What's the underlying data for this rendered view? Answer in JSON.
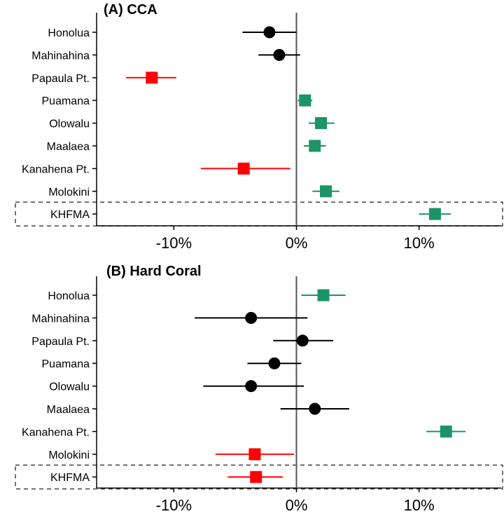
{
  "chart_data": [
    {
      "type": "scatter",
      "title": "(A) CCA",
      "categories": [
        "Honolua",
        "Mahinahina",
        "Papaula Pt.",
        "Puamana",
        "Olowalu",
        "Maalaea",
        "Kanahena Pt.",
        "Molokini",
        "KHFMA"
      ],
      "highlighted_category": "KHFMA",
      "x_tick_labels": [
        "-10%",
        "0%",
        "10%"
      ],
      "x_ticks": [
        -10,
        0,
        10
      ],
      "xlim": [
        -16.3,
        16.7
      ],
      "reference_line": 0,
      "colors": {
        "negative": "#ff0000",
        "neutral": "#000000",
        "positive": "#1b9466"
      },
      "points": [
        {
          "site": "Honolua",
          "value": -2.2,
          "low": -4.4,
          "high": 0.0,
          "marker": "circle",
          "status": "neutral"
        },
        {
          "site": "Mahinahina",
          "value": -1.4,
          "low": -3.1,
          "high": 0.3,
          "marker": "circle",
          "status": "neutral"
        },
        {
          "site": "Papaula Pt.",
          "value": -11.8,
          "low": -13.9,
          "high": -9.8,
          "marker": "square",
          "status": "negative"
        },
        {
          "site": "Puamana",
          "value": 0.7,
          "low": 0.1,
          "high": 1.3,
          "marker": "square",
          "status": "positive"
        },
        {
          "site": "Olowalu",
          "value": 2.0,
          "low": 1.0,
          "high": 3.1,
          "marker": "square",
          "status": "positive"
        },
        {
          "site": "Maalaea",
          "value": 1.5,
          "low": 0.6,
          "high": 2.4,
          "marker": "square",
          "status": "positive"
        },
        {
          "site": "Kanahena Pt.",
          "value": -4.3,
          "low": -7.8,
          "high": -0.5,
          "marker": "square",
          "status": "negative"
        },
        {
          "site": "Molokini",
          "value": 2.4,
          "low": 1.3,
          "high": 3.5,
          "marker": "square",
          "status": "positive"
        },
        {
          "site": "KHFMA",
          "value": 11.3,
          "low": 10.0,
          "high": 12.6,
          "marker": "square",
          "status": "positive"
        }
      ]
    },
    {
      "type": "scatter",
      "title": "(B) Hard Coral",
      "categories": [
        "Honolua",
        "Mahinahina",
        "Papaula Pt.",
        "Puamana",
        "Olowalu",
        "Maalaea",
        "Kanahena Pt.",
        "Molokini",
        "KHFMA"
      ],
      "highlighted_category": "KHFMA",
      "x_tick_labels": [
        "-10%",
        "0%",
        "10%"
      ],
      "x_ticks": [
        -10,
        0,
        10
      ],
      "xlim": [
        -16.3,
        16.7
      ],
      "reference_line": 0,
      "colors": {
        "negative": "#ff0000",
        "neutral": "#000000",
        "positive": "#1b9466"
      },
      "points": [
        {
          "site": "Honolua",
          "value": 2.2,
          "low": 0.4,
          "high": 4.0,
          "marker": "square",
          "status": "positive"
        },
        {
          "site": "Mahinahina",
          "value": -3.7,
          "low": -8.3,
          "high": 0.9,
          "marker": "circle",
          "status": "neutral"
        },
        {
          "site": "Papaula Pt.",
          "value": 0.5,
          "low": -1.9,
          "high": 3.0,
          "marker": "circle",
          "status": "neutral"
        },
        {
          "site": "Puamana",
          "value": -1.8,
          "low": -4.0,
          "high": 0.4,
          "marker": "circle",
          "status": "neutral"
        },
        {
          "site": "Olowalu",
          "value": -3.7,
          "low": -7.6,
          "high": 0.6,
          "marker": "circle",
          "status": "neutral"
        },
        {
          "site": "Maalaea",
          "value": 1.5,
          "low": -1.3,
          "high": 4.3,
          "marker": "circle",
          "status": "neutral"
        },
        {
          "site": "Kanahena Pt.",
          "value": 12.2,
          "low": 10.6,
          "high": 13.8,
          "marker": "square",
          "status": "positive"
        },
        {
          "site": "Molokini",
          "value": -3.4,
          "low": -6.6,
          "high": -0.2,
          "marker": "square",
          "status": "negative"
        },
        {
          "site": "KHFMA",
          "value": -3.3,
          "low": -5.6,
          "high": -1.1,
          "marker": "square",
          "status": "negative"
        }
      ]
    }
  ]
}
